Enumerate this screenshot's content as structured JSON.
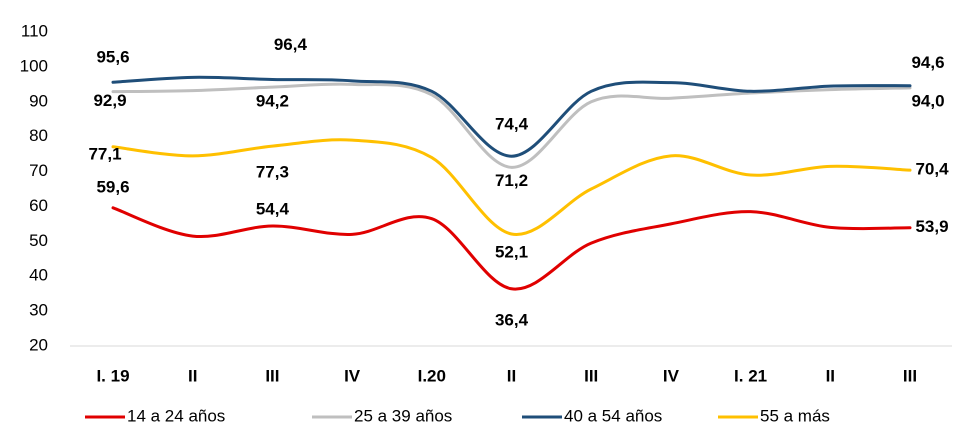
{
  "chart_data": {
    "type": "line",
    "categories": [
      "I. 19",
      "II",
      "III",
      "IV",
      "I.20",
      "II",
      "III",
      "IV",
      "I. 21",
      "II",
      "III"
    ],
    "ylim": [
      20,
      110
    ],
    "yticks": [
      20,
      30,
      40,
      50,
      60,
      70,
      80,
      90,
      100,
      110
    ],
    "grid": false,
    "legend": "bottom",
    "series": [
      {
        "name": "14 a 24 años",
        "color": "#e00000",
        "values": [
          59.6,
          51.5,
          54.4,
          52,
          56.5,
          36.4,
          49.5,
          55,
          58.5,
          54,
          53.9
        ],
        "value_labels": [
          "59,6",
          null,
          "54,4",
          null,
          null,
          "36,4",
          null,
          null,
          null,
          null,
          "53,9"
        ]
      },
      {
        "name": "25 a 39 años",
        "color": "#bfbfbf",
        "values": [
          92.9,
          93.2,
          94.2,
          95,
          92,
          71.2,
          90,
          91,
          92.5,
          93.5,
          94.0
        ],
        "value_labels": [
          "92,9",
          null,
          "94,2",
          null,
          null,
          "71,2",
          null,
          null,
          null,
          null,
          "94,0"
        ]
      },
      {
        "name": "40 a 54 años",
        "color": "#1f4e79",
        "values": [
          95.6,
          97,
          96.4,
          96,
          93,
          74.4,
          93,
          95.5,
          93,
          94.5,
          94.6
        ],
        "value_labels": [
          "95,6",
          null,
          "96,4",
          null,
          null,
          "74,4",
          null,
          null,
          null,
          null,
          "94,6"
        ]
      },
      {
        "name": "55 a más",
        "color": "#ffc000",
        "values": [
          77.1,
          74.5,
          77.3,
          79,
          74,
          52.1,
          65,
          74.5,
          69,
          71.5,
          70.4
        ],
        "value_labels": [
          "77,1",
          null,
          "77,3",
          null,
          null,
          "52,1",
          null,
          null,
          null,
          null,
          "70,4"
        ]
      }
    ]
  }
}
